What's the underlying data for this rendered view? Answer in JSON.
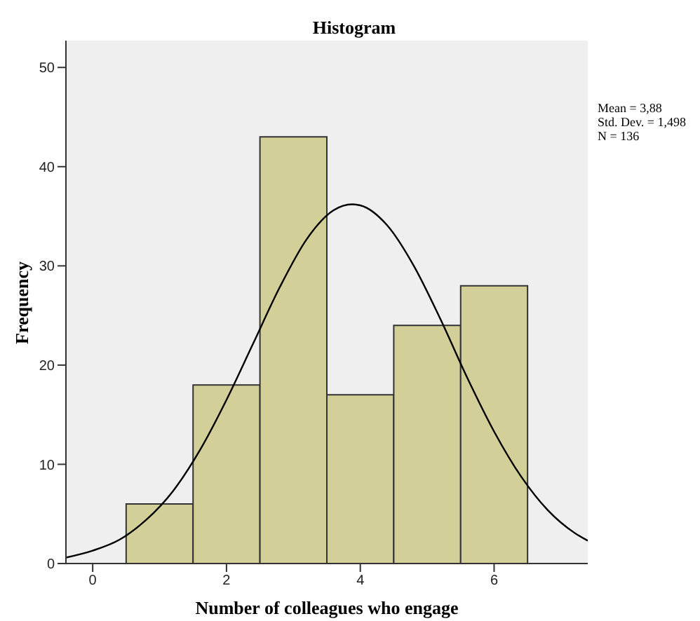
{
  "chart_data": {
    "type": "histogram",
    "title": "Histogram",
    "xlabel": "Number of colleagues who engage",
    "ylabel": "Frequency",
    "bins": [
      0.5,
      1.5,
      2.5,
      3.5,
      4.5,
      5.5,
      6.5
    ],
    "values": [
      6,
      18,
      43,
      17,
      24,
      28
    ],
    "color": "#d3cf98",
    "series": [
      {
        "type": "line",
        "color": "#000000",
        "x": [
          -0.4,
          0,
          0.4,
          0.8,
          1.2,
          1.6,
          2,
          2.4,
          2.8,
          3.2,
          3.6,
          3.88,
          4,
          4.4,
          4.8,
          5.2,
          5.6,
          6,
          6.4,
          6.8,
          7.2,
          7.4
        ],
        "values": [
          0.6,
          1.3,
          2.4,
          4.4,
          7.3,
          11.4,
          16.5,
          22.2,
          27.9,
          32.7,
          35.6,
          36.2,
          36.1,
          34.1,
          30,
          24.6,
          18.7,
          13.3,
          8.8,
          5.4,
          3.1,
          2.3
        ]
      }
    ],
    "xlim": [
      -0.4,
      7.4
    ],
    "xticks": [
      0,
      2,
      4,
      6
    ],
    "ylim": [
      0,
      52.7
    ],
    "yticks": [
      0,
      10,
      20,
      30,
      40,
      50
    ],
    "annotations": [
      "Mean = 3,88",
      "Std. Dev. = 1,498",
      "N = 136"
    ]
  }
}
